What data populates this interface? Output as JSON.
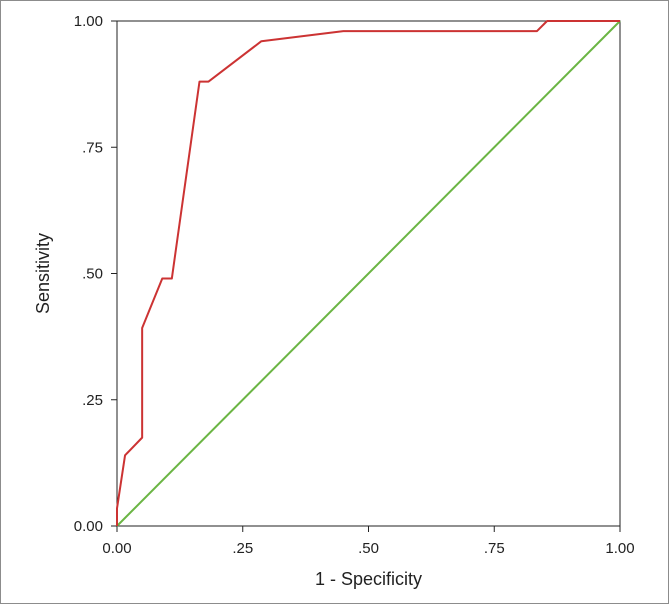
{
  "chart_data": {
    "type": "line",
    "xlabel": "1 - Specificity",
    "ylabel": "Sensitivity",
    "xlim": [
      0,
      1
    ],
    "ylim": [
      0,
      1
    ],
    "x_ticks": [
      0,
      0.25,
      0.5,
      0.75,
      1.0
    ],
    "x_tick_labels": [
      "0.00",
      ".25",
      ".50",
      ".75",
      "1.00"
    ],
    "y_ticks": [
      0,
      0.25,
      0.5,
      0.75,
      1.0
    ],
    "y_tick_labels": [
      "0.00",
      ".25",
      ".50",
      ".75",
      "1.00"
    ],
    "grid": false,
    "series": [
      {
        "color": "#cc3333",
        "x": [
          0.0,
          0.0,
          0.016,
          0.05,
          0.05,
          0.09,
          0.109,
          0.164,
          0.182,
          0.287,
          0.45,
          0.835,
          0.855,
          1.0
        ],
        "y": [
          0.0,
          0.035,
          0.14,
          0.175,
          0.392,
          0.49,
          0.49,
          0.88,
          0.88,
          0.96,
          0.98,
          0.98,
          1.0,
          1.0
        ]
      },
      {
        "color": "#6bb544",
        "x": [
          0,
          1
        ],
        "y": [
          0,
          1
        ]
      }
    ]
  }
}
